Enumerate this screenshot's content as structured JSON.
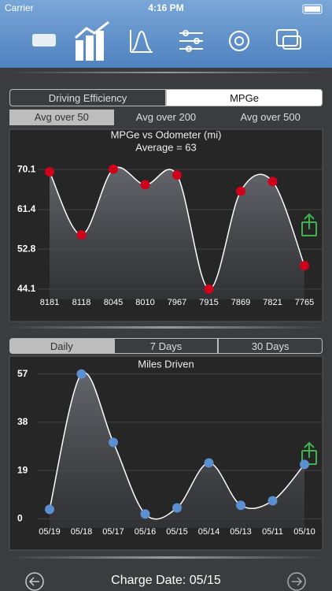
{
  "status_bar": {
    "carrier": "Carrier",
    "time": "4:16 PM"
  },
  "mode_tabs": [
    "Driving Efficiency",
    "MPGe"
  ],
  "average_tabs": [
    "Avg over 50",
    "Avg over 200",
    "Avg over 500"
  ],
  "efficiency_chart": {
    "type": "line",
    "title": "MPGe vs Odometer (mi)",
    "subtitle": "Average = 63",
    "categories": [
      "8181",
      "8118",
      "8045",
      "8010",
      "7967",
      "7915",
      "7869",
      "7821",
      "7765"
    ],
    "values": [
      69.6,
      55.9,
      70.2,
      66.8,
      68.9,
      44.1,
      65.4,
      67.5,
      49.2
    ],
    "color": "#d0021b",
    "ylim": [
      42.2,
      72.7
    ],
    "yticks": [
      44.1,
      52.8,
      61.4,
      70.1
    ],
    "grid": true
  },
  "period_tabs": [
    "Daily",
    "7 Days",
    "30 Days"
  ],
  "miles_chart": {
    "type": "line",
    "title": "Miles Driven",
    "categories": [
      "05/19",
      "05/18",
      "05/17",
      "05/16",
      "05/15",
      "05/14",
      "05/13",
      "05/11",
      "05/10"
    ],
    "values": [
      3.7,
      57,
      30.1,
      1.9,
      4.3,
      22,
      5.3,
      7.1,
      21.4
    ],
    "color": "#5b8fd0",
    "ylim": [
      -3,
      60
    ],
    "yticks": [
      0,
      19,
      38,
      57
    ],
    "grid": true
  },
  "footer": {
    "charge_date": "Charge Date: 05/15"
  }
}
